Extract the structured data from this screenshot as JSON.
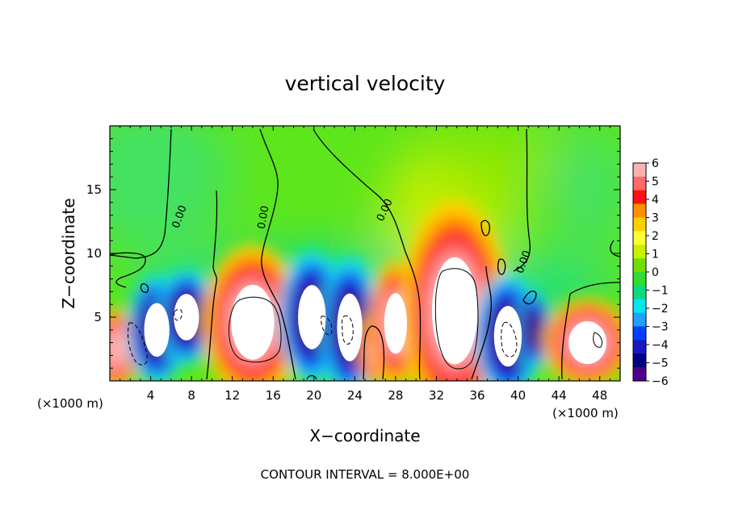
{
  "chart_data": {
    "type": "heatmap",
    "title": "vertical velocity",
    "xlabel": "X−coordinate",
    "ylabel": "Z−coordinate",
    "x_unit_left": "(×1000 m)",
    "x_unit_right": "(×1000 m)",
    "footer": "CONTOUR INTERVAL = 8.000E+00",
    "xlim": [
      0,
      50
    ],
    "ylim": [
      0,
      20
    ],
    "x_ticks": [
      4,
      8,
      12,
      16,
      20,
      24,
      28,
      32,
      36,
      40,
      44,
      48
    ],
    "y_ticks": [
      5,
      10,
      15
    ],
    "zero_contour_label": "0.00",
    "colorbar": {
      "labels": [
        "6",
        "5",
        "4",
        "3",
        "2",
        "1",
        "0",
        "−1",
        "−2",
        "−3",
        "−4",
        "−5",
        "−6"
      ],
      "colors": [
        "#ffb0b0",
        "#ff6a6a",
        "#ff1010",
        "#ff9000",
        "#ffd000",
        "#ffff30",
        "#c8f000",
        "#70e000",
        "#30dd30",
        "#10d880",
        "#00e8e8",
        "#20a0ff",
        "#0040ff",
        "#1818c0",
        "#000080",
        "#50008c"
      ]
    },
    "features": [
      {
        "kind": "updraft",
        "x": 0.6,
        "z": 2.5,
        "rx": 1.6,
        "rz": 2.2,
        "core": false
      },
      {
        "kind": "downdraft",
        "x": 4.6,
        "z": 4.0,
        "rx": 2.0,
        "rz": 3.0,
        "core": true
      },
      {
        "kind": "downdraft",
        "x": 7.5,
        "z": 5.0,
        "rx": 2.0,
        "rz": 2.6,
        "core": true
      },
      {
        "kind": "updraft",
        "x": 14.0,
        "z": 4.6,
        "rx": 3.4,
        "rz": 4.2,
        "core": true
      },
      {
        "kind": "downdraft",
        "x": 19.8,
        "z": 5.0,
        "rx": 2.2,
        "rz": 3.6,
        "core": true
      },
      {
        "kind": "downdraft",
        "x": 23.5,
        "z": 4.2,
        "rx": 2.0,
        "rz": 3.8,
        "core": true
      },
      {
        "kind": "updraft",
        "x": 26.0,
        "z": 2.5,
        "rx": 1.2,
        "rz": 2.0,
        "core": false
      },
      {
        "kind": "updraft",
        "x": 28.0,
        "z": 4.5,
        "rx": 1.8,
        "rz": 3.4,
        "core": true
      },
      {
        "kind": "updraft",
        "x": 33.8,
        "z": 5.5,
        "rx": 3.6,
        "rz": 6.0,
        "core": true
      },
      {
        "kind": "downdraft",
        "x": 39.0,
        "z": 3.5,
        "rx": 2.2,
        "rz": 3.4,
        "core": true
      },
      {
        "kind": "downdraft",
        "x": 41.5,
        "z": 4.0,
        "rx": 1.2,
        "rz": 2.2,
        "core": false
      },
      {
        "kind": "updraft",
        "x": 46.8,
        "z": 3.0,
        "rx": 3.0,
        "rz": 2.4,
        "core": true
      }
    ]
  }
}
